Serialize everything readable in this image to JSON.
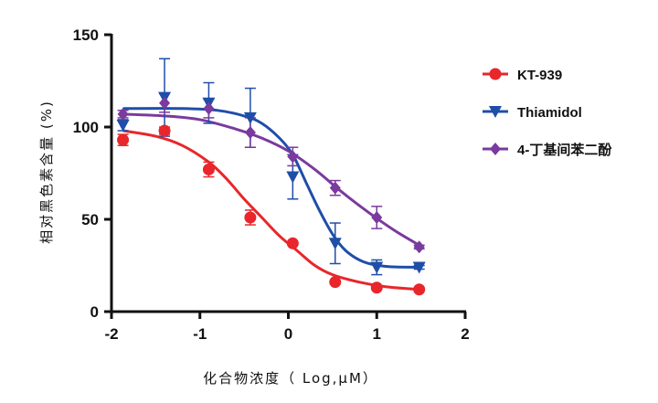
{
  "chart_data": {
    "type": "scatter",
    "title": "",
    "xlabel": "化合物浓度（ Log,μM）",
    "ylabel": "相对黑色素含量 (%)",
    "xlim": [
      -2,
      2
    ],
    "ylim": [
      0,
      150
    ],
    "xticks": [
      "-2",
      "-1",
      "0",
      "1",
      "2"
    ],
    "yticks": [
      "0",
      "50",
      "100",
      "150"
    ],
    "grid": false,
    "legend_position": "right",
    "series": [
      {
        "name": "KT-939",
        "color": "#e8262b",
        "marker": "circle",
        "points": [
          {
            "x": -1.87,
            "y": 93,
            "err": 3
          },
          {
            "x": -1.4,
            "y": 98,
            "err": 2
          },
          {
            "x": -0.9,
            "y": 77,
            "err": 4
          },
          {
            "x": -0.43,
            "y": 51,
            "err": 4
          },
          {
            "x": 0.05,
            "y": 37,
            "err": 1
          },
          {
            "x": 0.53,
            "y": 16,
            "err": 1
          },
          {
            "x": 1.0,
            "y": 13,
            "err": 1
          },
          {
            "x": 1.48,
            "y": 12,
            "err": 1
          }
        ],
        "fit": [
          [
            -1.87,
            98
          ],
          [
            -1.5,
            95
          ],
          [
            -1.2,
            90
          ],
          [
            -0.9,
            81
          ],
          [
            -0.7,
            72
          ],
          [
            -0.5,
            61
          ],
          [
            -0.3,
            51
          ],
          [
            -0.1,
            41
          ],
          [
            0.1,
            33
          ],
          [
            0.3,
            25
          ],
          [
            0.5,
            20
          ],
          [
            0.8,
            16
          ],
          [
            1.1,
            13.5
          ],
          [
            1.48,
            12
          ]
        ]
      },
      {
        "name": "Thiamidol",
        "color": "#1f4ea8",
        "marker": "triangle-down",
        "points": [
          {
            "x": -1.87,
            "y": 101,
            "err": 3
          },
          {
            "x": -1.4,
            "y": 116,
            "err": 21
          },
          {
            "x": -0.9,
            "y": 113,
            "err": 11
          },
          {
            "x": -0.43,
            "y": 105,
            "err": 16
          },
          {
            "x": 0.05,
            "y": 73,
            "err": 12
          },
          {
            "x": 0.53,
            "y": 37,
            "err": 11
          },
          {
            "x": 1.0,
            "y": 24,
            "err": 4
          },
          {
            "x": 1.48,
            "y": 24,
            "err": 1
          }
        ],
        "fit": [
          [
            -1.87,
            110
          ],
          [
            -1.2,
            110
          ],
          [
            -0.8,
            109
          ],
          [
            -0.5,
            106
          ],
          [
            -0.3,
            102
          ],
          [
            -0.1,
            94
          ],
          [
            0.05,
            85
          ],
          [
            0.2,
            70
          ],
          [
            0.35,
            55
          ],
          [
            0.5,
            42
          ],
          [
            0.65,
            33
          ],
          [
            0.85,
            27
          ],
          [
            1.1,
            24.5
          ],
          [
            1.48,
            24
          ]
        ]
      },
      {
        "name": "4-丁基间苯二酚",
        "color": "#7a3a9e",
        "marker": "diamond",
        "points": [
          {
            "x": -1.87,
            "y": 107,
            "err": 2
          },
          {
            "x": -1.4,
            "y": 113,
            "err": 5
          },
          {
            "x": -0.9,
            "y": 110,
            "err": 5
          },
          {
            "x": -0.43,
            "y": 97,
            "err": 8
          },
          {
            "x": 0.05,
            "y": 84,
            "err": 5
          },
          {
            "x": 0.53,
            "y": 67,
            "err": 4
          },
          {
            "x": 1.0,
            "y": 51,
            "err": 6
          },
          {
            "x": 1.48,
            "y": 35,
            "err": 1
          }
        ],
        "fit": [
          [
            -1.87,
            107
          ],
          [
            -1.4,
            106
          ],
          [
            -1.0,
            104
          ],
          [
            -0.6,
            99
          ],
          [
            -0.3,
            94
          ],
          [
            0.0,
            87
          ],
          [
            0.3,
            77
          ],
          [
            0.6,
            65
          ],
          [
            0.9,
            54
          ],
          [
            1.2,
            44
          ],
          [
            1.48,
            36
          ]
        ]
      }
    ]
  }
}
